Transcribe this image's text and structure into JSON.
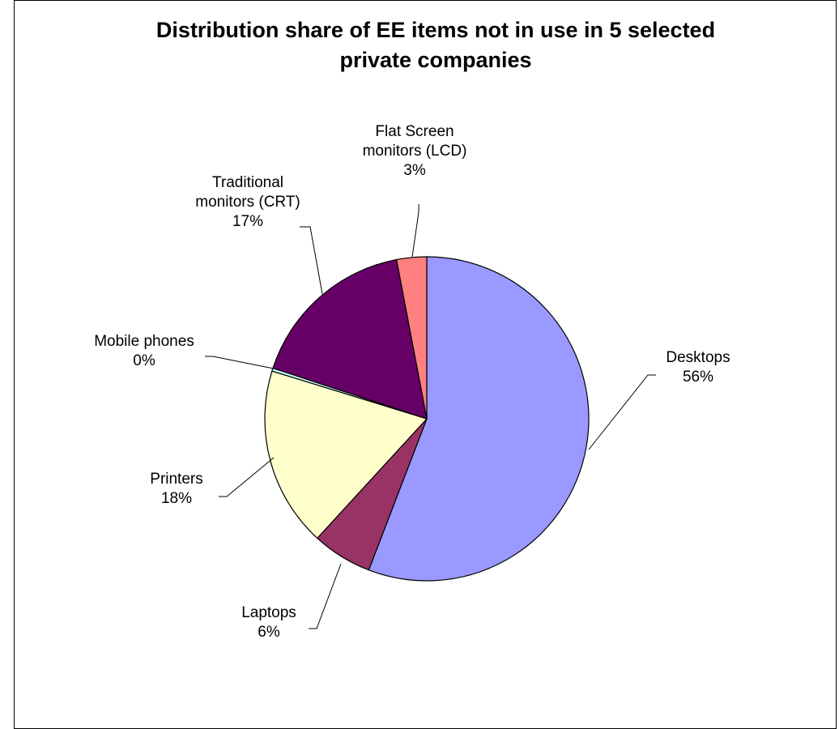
{
  "chart_data": {
    "type": "pie",
    "title": "Distribution share of EE items not in use in 5 selected\nprivate companies",
    "slices": [
      {
        "name": "Desktops",
        "label_lines": [
          "Desktops",
          "56%"
        ],
        "value": 56,
        "color": "#9999ff"
      },
      {
        "name": "Laptops",
        "label_lines": [
          "Laptops",
          "6%"
        ],
        "value": 6,
        "color": "#993366"
      },
      {
        "name": "Printers",
        "label_lines": [
          "Printers",
          "18%"
        ],
        "value": 18,
        "color": "#ffffcc"
      },
      {
        "name": "Mobile phones",
        "label_lines": [
          "Mobile phones",
          "0%"
        ],
        "value": 0.3,
        "color": "#ccffff"
      },
      {
        "name": "Traditional monitors (CRT)",
        "label_lines": [
          "Traditional",
          "monitors (CRT)",
          "17%"
        ],
        "value": 17,
        "color": "#660066"
      },
      {
        "name": "Flat Screen monitors (LCD)",
        "label_lines": [
          "Flat Screen",
          "monitors (LCD)",
          "3%"
        ],
        "value": 3,
        "color": "#ff8080"
      }
    ],
    "start_angle_deg": 0,
    "direction": "clockwise",
    "legend": "none"
  }
}
